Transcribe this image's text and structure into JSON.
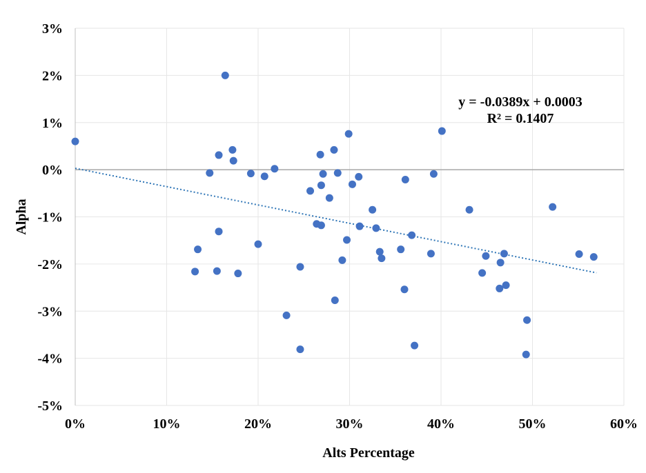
{
  "chart_data": {
    "type": "scatter",
    "xlabel": "Alts Percentage",
    "ylabel": "Alpha",
    "xlim": [
      0,
      0.6
    ],
    "ylim": [
      -0.05,
      0.03
    ],
    "x_ticks": [
      {
        "value": 0,
        "label": "0%"
      },
      {
        "value": 0.1,
        "label": "10%"
      },
      {
        "value": 0.2,
        "label": "20%"
      },
      {
        "value": 0.3,
        "label": "30%"
      },
      {
        "value": 0.4,
        "label": "40%"
      },
      {
        "value": 0.5,
        "label": "50%"
      },
      {
        "value": 0.6,
        "label": "60%"
      }
    ],
    "y_ticks": [
      {
        "value": 0.03,
        "label": "3%"
      },
      {
        "value": 0.02,
        "label": "2%"
      },
      {
        "value": 0.01,
        "label": "1%"
      },
      {
        "value": 0,
        "label": "0%"
      },
      {
        "value": -0.01,
        "label": "-1%"
      },
      {
        "value": -0.02,
        "label": "-2%"
      },
      {
        "value": -0.03,
        "label": "-3%"
      },
      {
        "value": -0.04,
        "label": "-4%"
      },
      {
        "value": -0.05,
        "label": "-5%"
      }
    ],
    "grid": true,
    "point_color": "#4472C4",
    "trendline": {
      "slope": -0.0389,
      "intercept": 0.0003,
      "x_range": [
        0,
        0.57
      ],
      "color": "#2E75B6",
      "style": "dotted",
      "equation_label": "y = -0.0389x + 0.0003",
      "r2_label": "R² = 0.1407"
    },
    "points": [
      {
        "x": 0.0,
        "y": 0.006
      },
      {
        "x": 0.131,
        "y": -0.0216
      },
      {
        "x": 0.134,
        "y": -0.0169
      },
      {
        "x": 0.147,
        "y": -0.0007
      },
      {
        "x": 0.155,
        "y": -0.0215
      },
      {
        "x": 0.157,
        "y": 0.0031
      },
      {
        "x": 0.157,
        "y": -0.0131
      },
      {
        "x": 0.164,
        "y": 0.02
      },
      {
        "x": 0.172,
        "y": 0.0042
      },
      {
        "x": 0.173,
        "y": 0.0019
      },
      {
        "x": 0.178,
        "y": -0.022
      },
      {
        "x": 0.192,
        "y": -0.0008
      },
      {
        "x": 0.2,
        "y": -0.0158
      },
      {
        "x": 0.207,
        "y": -0.0014
      },
      {
        "x": 0.218,
        "y": 0.0002
      },
      {
        "x": 0.231,
        "y": -0.0309
      },
      {
        "x": 0.246,
        "y": -0.0206
      },
      {
        "x": 0.246,
        "y": -0.0381
      },
      {
        "x": 0.257,
        "y": -0.0045
      },
      {
        "x": 0.264,
        "y": -0.0115
      },
      {
        "x": 0.268,
        "y": 0.0032
      },
      {
        "x": 0.269,
        "y": -0.0033
      },
      {
        "x": 0.269,
        "y": -0.0118
      },
      {
        "x": 0.271,
        "y": -0.0009
      },
      {
        "x": 0.278,
        "y": -0.006
      },
      {
        "x": 0.283,
        "y": 0.0042
      },
      {
        "x": 0.284,
        "y": -0.0277
      },
      {
        "x": 0.287,
        "y": -0.0007
      },
      {
        "x": 0.292,
        "y": -0.0192
      },
      {
        "x": 0.297,
        "y": -0.0149
      },
      {
        "x": 0.299,
        "y": 0.0076
      },
      {
        "x": 0.303,
        "y": -0.0031
      },
      {
        "x": 0.31,
        "y": -0.0015
      },
      {
        "x": 0.311,
        "y": -0.012
      },
      {
        "x": 0.325,
        "y": -0.0085
      },
      {
        "x": 0.329,
        "y": -0.0124
      },
      {
        "x": 0.333,
        "y": -0.0174
      },
      {
        "x": 0.335,
        "y": -0.0188
      },
      {
        "x": 0.356,
        "y": -0.0169
      },
      {
        "x": 0.36,
        "y": -0.0254
      },
      {
        "x": 0.361,
        "y": -0.0021
      },
      {
        "x": 0.368,
        "y": -0.0139
      },
      {
        "x": 0.371,
        "y": -0.0373
      },
      {
        "x": 0.389,
        "y": -0.0178
      },
      {
        "x": 0.392,
        "y": -0.0009
      },
      {
        "x": 0.401,
        "y": 0.0082
      },
      {
        "x": 0.431,
        "y": -0.0085
      },
      {
        "x": 0.445,
        "y": -0.0219
      },
      {
        "x": 0.449,
        "y": -0.0183
      },
      {
        "x": 0.464,
        "y": -0.0252
      },
      {
        "x": 0.465,
        "y": -0.0197
      },
      {
        "x": 0.469,
        "y": -0.0178
      },
      {
        "x": 0.471,
        "y": -0.0245
      },
      {
        "x": 0.493,
        "y": -0.0392
      },
      {
        "x": 0.494,
        "y": -0.0319
      },
      {
        "x": 0.522,
        "y": -0.0079
      },
      {
        "x": 0.551,
        "y": -0.0179
      },
      {
        "x": 0.567,
        "y": -0.0185
      }
    ]
  }
}
